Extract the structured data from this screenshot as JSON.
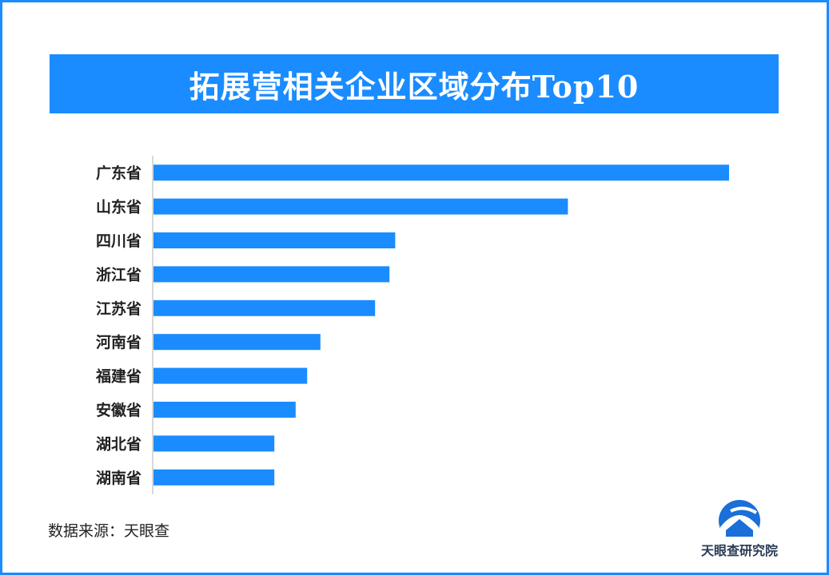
{
  "title": "拓展营相关企业区域分布Top10",
  "source": "数据来源：天眼查",
  "logo_text": "天眼查研究院",
  "colors": {
    "bar": "#1a8cff",
    "banner": "#1a8cff",
    "axis": "#cccccc"
  },
  "chart_data": {
    "type": "bar",
    "orientation": "horizontal",
    "categories": [
      "广东省",
      "山东省",
      "四川省",
      "浙江省",
      "江苏省",
      "河南省",
      "福建省",
      "安徽省",
      "湖北省",
      "湖南省"
    ],
    "values": [
      100,
      72,
      42,
      41,
      38.5,
      29,
      26.7,
      24.7,
      21,
      21
    ],
    "xlim": [
      0,
      100
    ],
    "grid": false,
    "legend": "none"
  }
}
